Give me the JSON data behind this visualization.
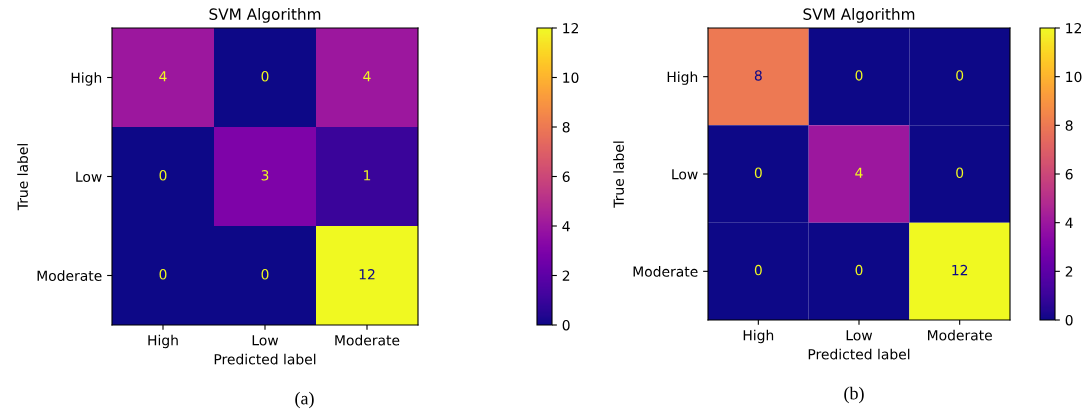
{
  "chart_data": [
    {
      "type": "heatmap",
      "title": "SVM Algorithm",
      "xlabel": "Predicted label",
      "ylabel": "True label",
      "categories": [
        "High",
        "Low",
        "Moderate"
      ],
      "y_categories": [
        "High",
        "Low",
        "Moderate"
      ],
      "cells": [
        [
          4,
          0,
          4
        ],
        [
          0,
          3,
          1
        ],
        [
          0,
          0,
          12
        ]
      ],
      "data_labels": true,
      "clim": [
        0,
        12
      ],
      "cticks": [
        0,
        2,
        4,
        6,
        8,
        10,
        12
      ],
      "annotations": [
        "(a)"
      ]
    },
    {
      "type": "heatmap",
      "title": "SVM Algorithm",
      "xlabel": "Predicted label",
      "ylabel": "True label",
      "categories": [
        "High",
        "Low",
        "Moderate"
      ],
      "y_categories": [
        "High",
        "Low",
        "Moderate"
      ],
      "cells": [
        [
          8,
          0,
          0
        ],
        [
          0,
          4,
          0
        ],
        [
          0,
          0,
          12
        ]
      ],
      "data_labels": true,
      "clim": [
        0,
        12
      ],
      "cticks": [
        0,
        2,
        4,
        6,
        8,
        10,
        12
      ],
      "annotations": [
        "(b)"
      ]
    }
  ]
}
